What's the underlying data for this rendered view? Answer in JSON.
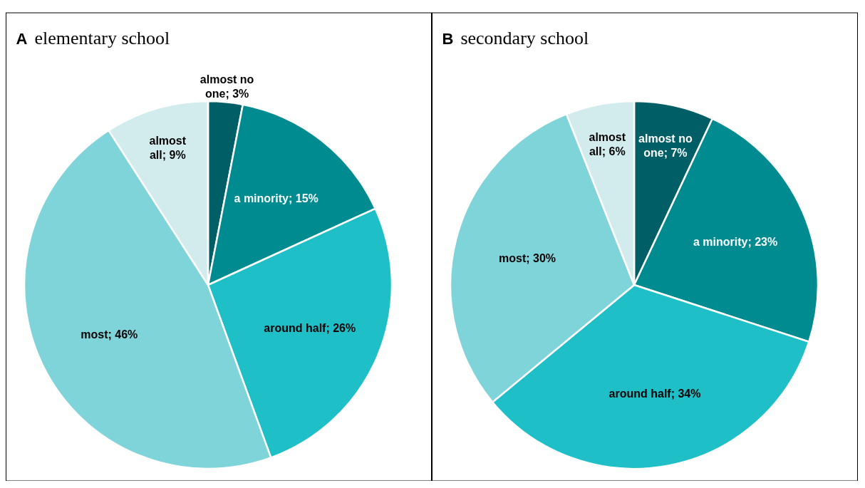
{
  "chart_data": [
    {
      "type": "pie",
      "title": "A elementary school",
      "categories": [
        "almost no one",
        "a minority",
        "around half",
        "most",
        "almost all"
      ],
      "values": [
        3,
        15,
        26,
        46,
        9
      ],
      "value_labels": [
        "3%",
        "15%",
        "26%",
        "46%",
        "9%"
      ],
      "colors": [
        "#005f66",
        "#008b91",
        "#1fbfc8",
        "#7fd4d9",
        "#d2ecee"
      ]
    },
    {
      "type": "pie",
      "title": "B secondary school",
      "categories": [
        "almost no one",
        "a minority",
        "around half",
        "most",
        "almost all"
      ],
      "values": [
        7,
        23,
        34,
        30,
        6
      ],
      "value_labels": [
        "7%",
        "23%",
        "34%",
        "30%",
        "6%"
      ],
      "colors": [
        "#005f66",
        "#008b91",
        "#1fbfc8",
        "#7fd4d9",
        "#d2ecee"
      ]
    }
  ]
}
